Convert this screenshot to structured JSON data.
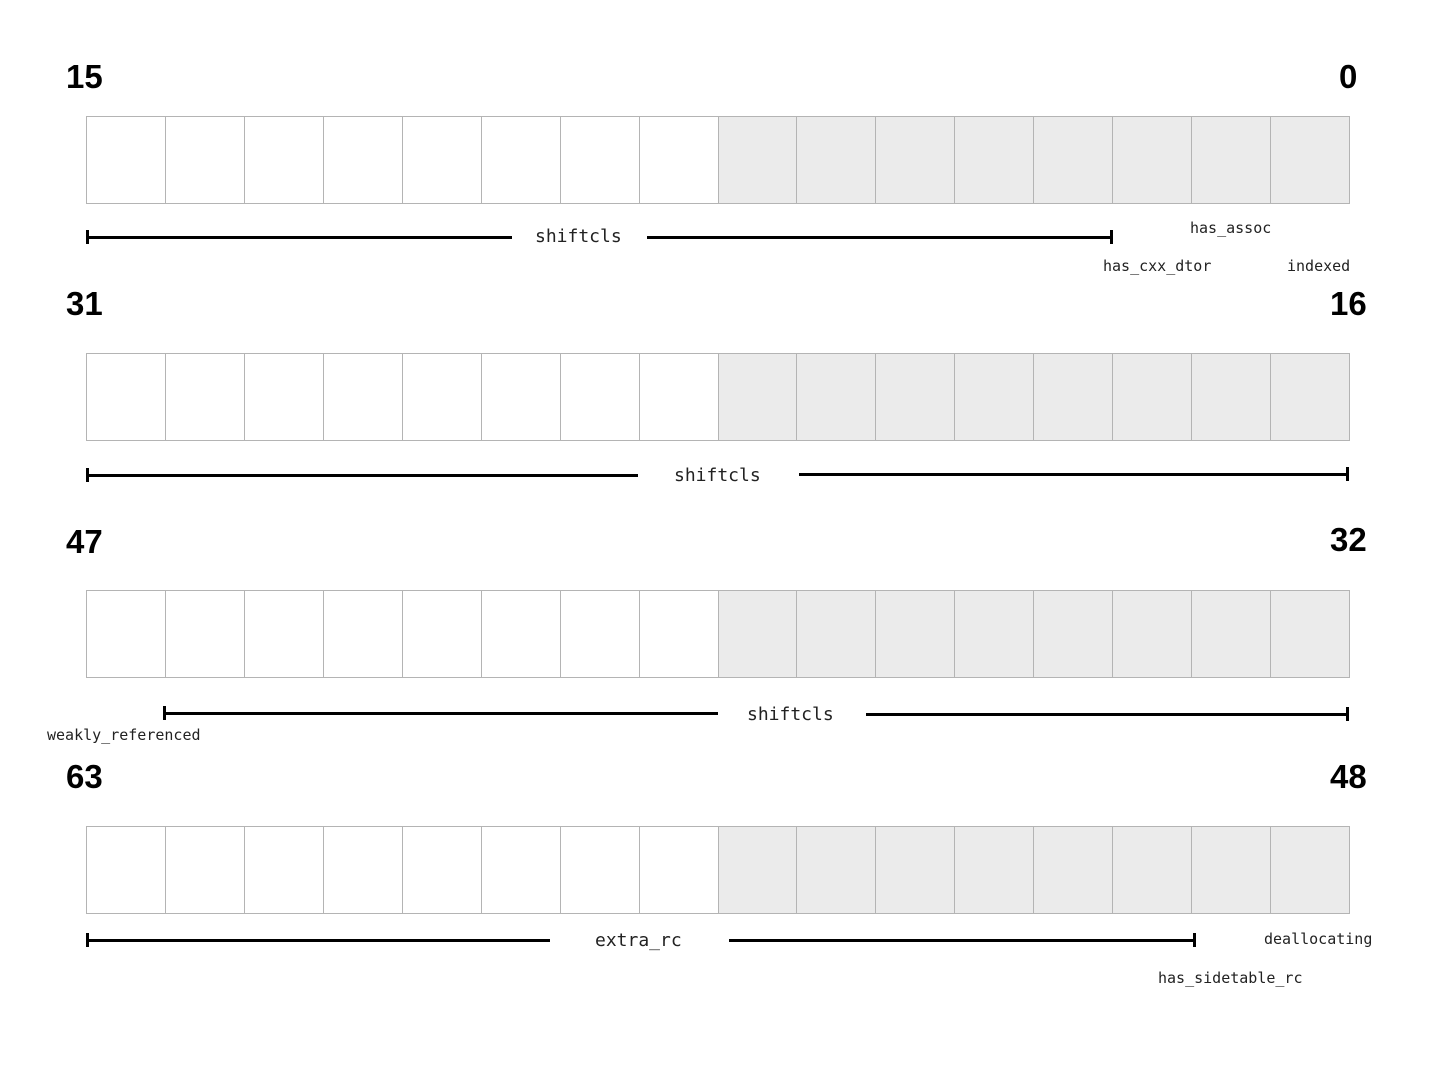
{
  "rows": [
    {
      "high_bit": "15",
      "low_bit": "0",
      "main_field": "shiftcls",
      "small_labels": [
        "has_assoc",
        "has_cxx_dtor",
        "indexed"
      ]
    },
    {
      "high_bit": "31",
      "low_bit": "16",
      "main_field": "shiftcls",
      "small_labels": []
    },
    {
      "high_bit": "47",
      "low_bit": "32",
      "main_field": "shiftcls",
      "small_labels": [
        "weakly_referenced"
      ]
    },
    {
      "high_bit": "63",
      "low_bit": "48",
      "main_field": "extra_rc",
      "small_labels": [
        "deallocating",
        "has_sidetable_rc"
      ]
    }
  ],
  "cells_per_row": 16,
  "colors": {
    "cell_border": "#b4b4b4",
    "shaded_cell": "#ebebeb",
    "bracket": "#000000"
  }
}
